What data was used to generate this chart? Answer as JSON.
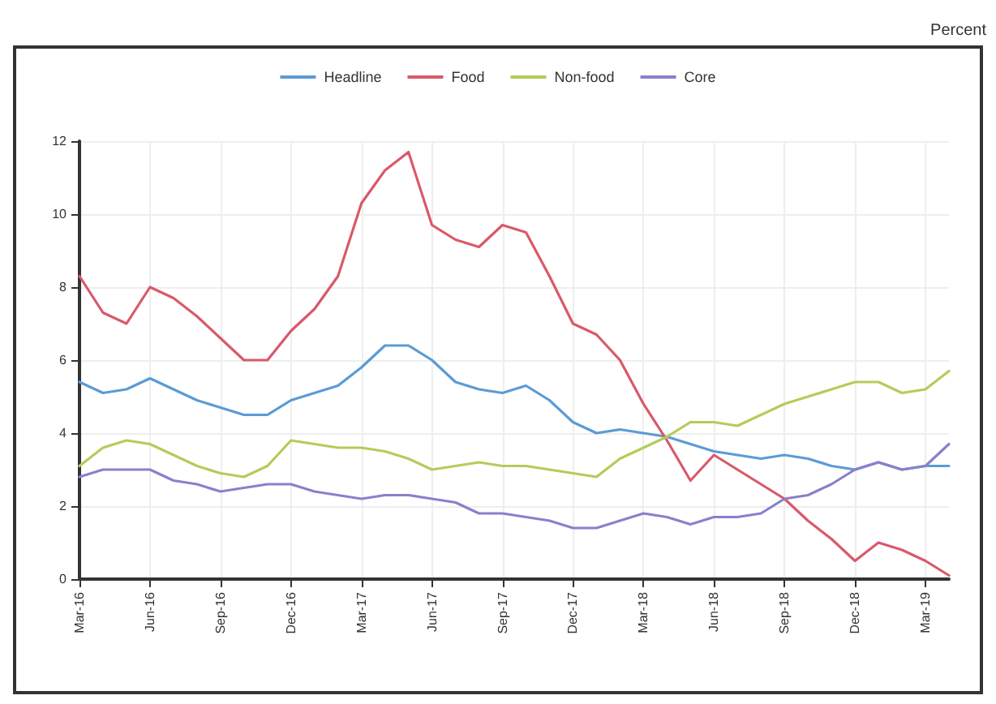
{
  "chart_data": {
    "type": "line",
    "annotations": [
      "Percent"
    ],
    "categories": [
      "Mar-16",
      null,
      null,
      "Jun-16",
      null,
      null,
      "Sep-16",
      null,
      null,
      "Dec-16",
      null,
      null,
      "Mar-17",
      null,
      null,
      "Jun-17",
      null,
      null,
      "Sep-17",
      null,
      null,
      "Dec-17",
      null,
      null,
      "Mar-18",
      null,
      null,
      "Jun-18",
      null,
      null,
      "Sep-18",
      null,
      null,
      "Dec-18",
      null,
      null,
      "Mar-19",
      null
    ],
    "series": [
      {
        "name": "Headline",
        "color": "#5b9bd5",
        "values": [
          5.4,
          5.1,
          5.2,
          5.5,
          5.2,
          4.9,
          4.7,
          4.5,
          4.5,
          4.9,
          5.1,
          5.3,
          5.8,
          6.4,
          6.4,
          6.0,
          5.4,
          5.2,
          5.1,
          5.3,
          4.9,
          4.3,
          4.0,
          4.1,
          4.0,
          3.9,
          3.7,
          3.5,
          3.4,
          3.3,
          3.4,
          3.3,
          3.1,
          3.0,
          3.2,
          3.0,
          3.1,
          3.1
        ]
      },
      {
        "name": "Food",
        "color": "#d9596a",
        "values": [
          8.3,
          7.3,
          7.0,
          8.0,
          7.7,
          7.2,
          6.6,
          6.0,
          6.0,
          6.8,
          7.4,
          8.3,
          10.3,
          11.2,
          11.7,
          9.7,
          9.3,
          9.1,
          9.7,
          9.5,
          8.3,
          7.0,
          6.7,
          6.0,
          4.8,
          3.8,
          2.7,
          3.4,
          3.0,
          2.6,
          2.2,
          1.6,
          1.1,
          0.5,
          1.0,
          0.8,
          0.5,
          0.1
        ]
      },
      {
        "name": "Non-food",
        "color": "#b3cc5a",
        "values": [
          3.1,
          3.6,
          3.8,
          3.7,
          3.4,
          3.1,
          2.9,
          2.8,
          3.1,
          3.8,
          3.7,
          3.6,
          3.6,
          3.5,
          3.3,
          3.0,
          3.1,
          3.2,
          3.1,
          3.1,
          3.0,
          2.9,
          2.8,
          3.3,
          3.6,
          3.9,
          4.3,
          4.3,
          4.2,
          4.5,
          4.8,
          5.0,
          5.2,
          5.4,
          5.4,
          5.1,
          5.2,
          5.7
        ]
      },
      {
        "name": "Core",
        "color": "#8a80cc",
        "values": [
          2.8,
          3.0,
          3.0,
          3.0,
          2.7,
          2.6,
          2.4,
          2.5,
          2.6,
          2.6,
          2.4,
          2.3,
          2.2,
          2.3,
          2.3,
          2.2,
          2.1,
          1.8,
          1.8,
          1.7,
          1.6,
          1.4,
          1.4,
          1.6,
          1.8,
          1.7,
          1.5,
          1.7,
          1.7,
          1.8,
          2.2,
          2.3,
          2.6,
          3.0,
          3.2,
          3.0,
          3.1,
          3.7
        ]
      }
    ],
    "ylim": [
      0,
      12
    ],
    "yticks": [
      0,
      2,
      4,
      6,
      8,
      10,
      12
    ],
    "grid": true,
    "legend": "top",
    "marker": "none",
    "line_style": "solid"
  }
}
